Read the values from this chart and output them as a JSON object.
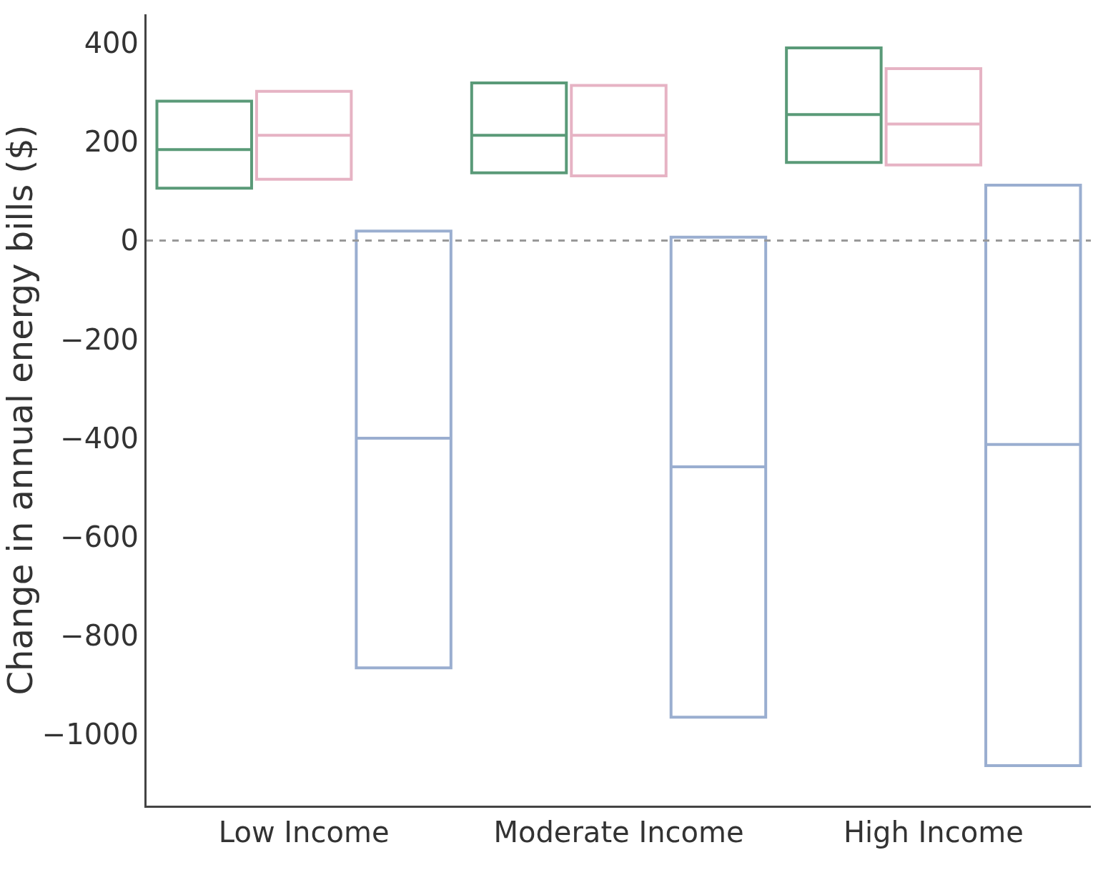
{
  "chart_data": {
    "type": "box",
    "ylabel": "Change in annual energy bills ($)",
    "categories": [
      "Low Income",
      "Moderate Income",
      "High Income"
    ],
    "series": [
      {
        "color": "#5a9a78",
        "boxes": [
          {
            "low": 106,
            "q1": 106,
            "median": 184,
            "q3": 282,
            "high": 282
          },
          {
            "low": 137,
            "q1": 137,
            "median": 213,
            "q3": 319,
            "high": 319
          },
          {
            "low": 158,
            "q1": 158,
            "median": 255,
            "q3": 390,
            "high": 390
          }
        ]
      },
      {
        "color": "#e6b3c4",
        "boxes": [
          {
            "low": 124,
            "q1": 124,
            "median": 213,
            "q3": 302,
            "high": 302
          },
          {
            "low": 131,
            "q1": 131,
            "median": 213,
            "q3": 314,
            "high": 314
          },
          {
            "low": 153,
            "q1": 153,
            "median": 236,
            "q3": 348,
            "high": 348
          }
        ]
      },
      {
        "color": "#9aaed0",
        "boxes": [
          {
            "low": -865,
            "q1": -865,
            "median": -400,
            "q3": 19,
            "high": 19
          },
          {
            "low": -965,
            "q1": -965,
            "median": -458,
            "q3": 7,
            "high": 7
          },
          {
            "low": -1063,
            "q1": -1063,
            "median": -413,
            "q3": 112,
            "high": 112
          }
        ]
      }
    ],
    "ylim": [
      -1144,
      458
    ],
    "yticks": [
      400,
      200,
      0,
      -200,
      -400,
      -600,
      -800,
      -1000
    ],
    "ref_lines": [
      {
        "axis": "y",
        "value": 0,
        "color": "#999999",
        "line_style": "dashed"
      }
    ]
  }
}
